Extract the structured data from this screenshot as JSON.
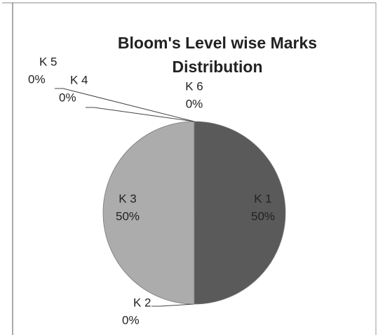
{
  "chart_data": {
    "type": "pie",
    "title": [
      "Bloom's Level wise Marks",
      "Distribution"
    ],
    "categories": [
      "K 1",
      "K 2",
      "K 3",
      "K 4",
      "K 5",
      "K 6"
    ],
    "values": [
      50,
      0,
      50,
      0,
      0,
      0
    ],
    "value_labels": [
      "50%",
      "0%",
      "50%",
      "0%",
      "0%",
      "0%"
    ],
    "colors": [
      "#5a5a5a",
      "#7a7a7a",
      "#acacac",
      "#cccccc",
      "#bbbbbb",
      "#999999"
    ]
  }
}
